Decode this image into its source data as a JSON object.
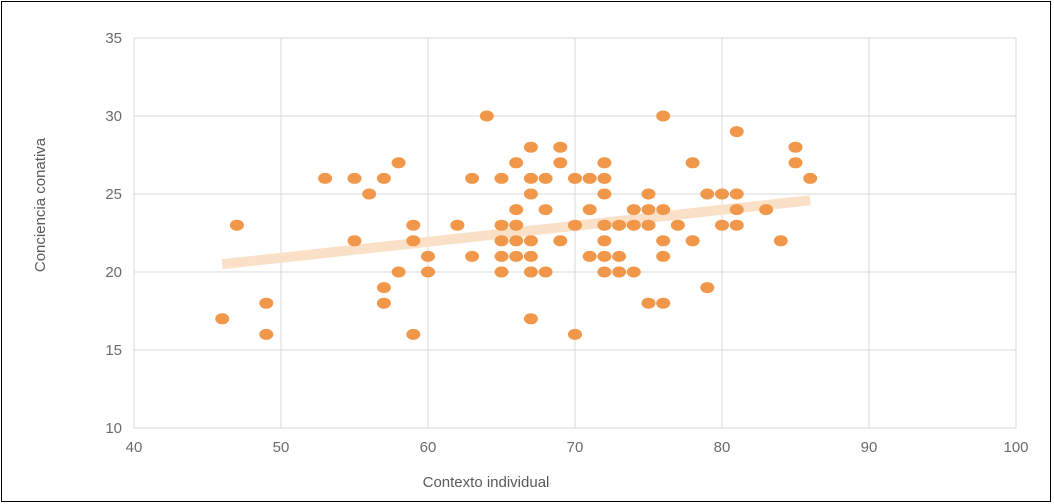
{
  "chart_data": {
    "type": "scatter",
    "title": "",
    "xlabel": "Contexto individual",
    "ylabel": "Conciencia conativa",
    "xlim": [
      40,
      100
    ],
    "ylim": [
      10,
      35
    ],
    "x_ticks": [
      "40",
      "50",
      "60",
      "70",
      "80",
      "90",
      "100"
    ],
    "y_ticks": [
      "10",
      "15",
      "20",
      "25",
      "30",
      "35"
    ],
    "grid": true,
    "legend": "none",
    "point_color": "#f0974a",
    "trendline_color": "#fbe0c8",
    "trendline": {
      "x": [
        46,
        86
      ],
      "y": [
        20.5,
        24.6
      ]
    },
    "points": [
      [
        46,
        17
      ],
      [
        47,
        23
      ],
      [
        49,
        18
      ],
      [
        49,
        16
      ],
      [
        53,
        26
      ],
      [
        55,
        26
      ],
      [
        55,
        22
      ],
      [
        56,
        25
      ],
      [
        57,
        26
      ],
      [
        57,
        19
      ],
      [
        57,
        18
      ],
      [
        58,
        27
      ],
      [
        58,
        20
      ],
      [
        59,
        23
      ],
      [
        59,
        22
      ],
      [
        59,
        16
      ],
      [
        60,
        21
      ],
      [
        60,
        20
      ],
      [
        62,
        23
      ],
      [
        63,
        26
      ],
      [
        63,
        21
      ],
      [
        64,
        30
      ],
      [
        65,
        26
      ],
      [
        65,
        23
      ],
      [
        65,
        22
      ],
      [
        65,
        21
      ],
      [
        65,
        20
      ],
      [
        66,
        27
      ],
      [
        66,
        24
      ],
      [
        66,
        23
      ],
      [
        66,
        22
      ],
      [
        66,
        21
      ],
      [
        67,
        28
      ],
      [
        67,
        26
      ],
      [
        67,
        25
      ],
      [
        67,
        22
      ],
      [
        67,
        21
      ],
      [
        67,
        20
      ],
      [
        67,
        17
      ],
      [
        68,
        26
      ],
      [
        68,
        24
      ],
      [
        68,
        20
      ],
      [
        69,
        28
      ],
      [
        69,
        27
      ],
      [
        69,
        22
      ],
      [
        70,
        26
      ],
      [
        70,
        23
      ],
      [
        70,
        16
      ],
      [
        71,
        26
      ],
      [
        71,
        24
      ],
      [
        71,
        21
      ],
      [
        72,
        27
      ],
      [
        72,
        26
      ],
      [
        72,
        25
      ],
      [
        72,
        23
      ],
      [
        72,
        22
      ],
      [
        72,
        21
      ],
      [
        72,
        20
      ],
      [
        73,
        23
      ],
      [
        73,
        21
      ],
      [
        73,
        20
      ],
      [
        74,
        24
      ],
      [
        74,
        23
      ],
      [
        74,
        20
      ],
      [
        75,
        25
      ],
      [
        75,
        24
      ],
      [
        75,
        23
      ],
      [
        75,
        18
      ],
      [
        76,
        30
      ],
      [
        76,
        24
      ],
      [
        76,
        22
      ],
      [
        76,
        21
      ],
      [
        76,
        18
      ],
      [
        77,
        23
      ],
      [
        78,
        27
      ],
      [
        78,
        22
      ],
      [
        79,
        25
      ],
      [
        79,
        19
      ],
      [
        80,
        25
      ],
      [
        80,
        23
      ],
      [
        81,
        29
      ],
      [
        81,
        25
      ],
      [
        81,
        24
      ],
      [
        81,
        23
      ],
      [
        83,
        24
      ],
      [
        84,
        22
      ],
      [
        85,
        28
      ],
      [
        85,
        27
      ],
      [
        86,
        26
      ]
    ]
  }
}
